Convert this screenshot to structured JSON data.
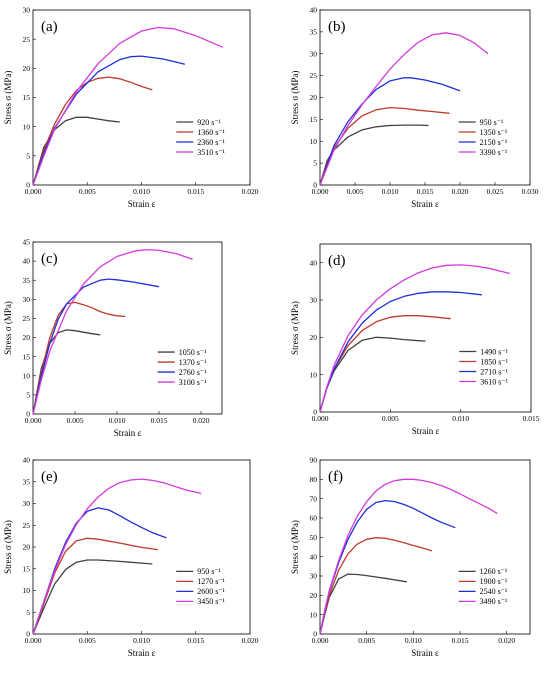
{
  "colors": {
    "series": [
      "#404040",
      "#c0392b",
      "#1f2fd6",
      "#d43adf"
    ],
    "axes": "#000000",
    "background": "#ffffff"
  },
  "chart_data": [
    {
      "type": "line",
      "panel_label": "(a)",
      "xlabel": "Strain ε",
      "ylabel": "Stress σ (MPa)",
      "xlim": [
        0,
        0.02
      ],
      "ylim": [
        0,
        30
      ],
      "xticks": [
        "0.000",
        "0.005",
        "0.010",
        "0.015",
        "0.020"
      ],
      "yticks": [
        "0",
        "5",
        "10",
        "15",
        "20",
        "25",
        "30"
      ],
      "series": [
        {
          "name": "920 s⁻¹",
          "x": [
            0,
            0.001,
            0.002,
            0.003,
            0.004,
            0.005,
            0.006,
            0.007,
            0.008
          ],
          "y": [
            0,
            6.5,
            9.5,
            11.0,
            11.6,
            11.6,
            11.3,
            11.0,
            10.8
          ]
        },
        {
          "name": "1360 s⁻¹",
          "x": [
            0,
            0.001,
            0.002,
            0.003,
            0.004,
            0.005,
            0.006,
            0.007,
            0.008,
            0.009,
            0.01,
            0.011
          ],
          "y": [
            0,
            6.0,
            10.5,
            13.8,
            16.2,
            17.6,
            18.3,
            18.5,
            18.2,
            17.6,
            16.9,
            16.3
          ]
        },
        {
          "name": "2360 s⁻¹",
          "x": [
            0,
            0.001,
            0.002,
            0.004,
            0.006,
            0.008,
            0.009,
            0.01,
            0.012,
            0.014
          ],
          "y": [
            0,
            5.5,
            9.8,
            15.6,
            19.4,
            21.5,
            22.0,
            22.1,
            21.6,
            20.7
          ]
        },
        {
          "name": "3510 s⁻¹",
          "x": [
            0,
            0.001,
            0.002,
            0.004,
            0.006,
            0.008,
            0.01,
            0.0115,
            0.013,
            0.015,
            0.0175
          ],
          "y": [
            0,
            5.0,
            9.6,
            16.0,
            20.8,
            24.3,
            26.4,
            27.0,
            26.8,
            25.6,
            23.6
          ]
        }
      ]
    },
    {
      "type": "line",
      "panel_label": "(b)",
      "xlabel": "Strain ε",
      "ylabel": "Stress σ (MPa)",
      "xlim": [
        0,
        0.03
      ],
      "ylim": [
        0,
        40
      ],
      "xticks": [
        "0.000",
        "0.005",
        "0.010",
        "0.015",
        "0.020",
        "0.025",
        "0.030"
      ],
      "yticks": [
        "0",
        "5",
        "10",
        "15",
        "20",
        "25",
        "30",
        "35",
        "40"
      ],
      "series": [
        {
          "name": "950 s⁻¹",
          "x": [
            0,
            0.001,
            0.002,
            0.004,
            0.006,
            0.008,
            0.01,
            0.012,
            0.014,
            0.0155
          ],
          "y": [
            0,
            5.5,
            8.0,
            11.0,
            12.6,
            13.3,
            13.6,
            13.7,
            13.7,
            13.6
          ]
        },
        {
          "name": "1350 s⁻¹",
          "x": [
            0,
            0.001,
            0.002,
            0.004,
            0.006,
            0.008,
            0.01,
            0.012,
            0.014,
            0.016,
            0.0185
          ],
          "y": [
            0,
            5.0,
            8.5,
            13.0,
            15.8,
            17.2,
            17.7,
            17.5,
            17.1,
            16.8,
            16.4
          ]
        },
        {
          "name": "2150 s⁻¹",
          "x": [
            0,
            0.002,
            0.004,
            0.006,
            0.008,
            0.01,
            0.012,
            0.013,
            0.015,
            0.0175,
            0.02
          ],
          "y": [
            0,
            9.0,
            14.5,
            18.5,
            21.8,
            23.8,
            24.5,
            24.5,
            24.0,
            23.0,
            21.5
          ]
        },
        {
          "name": "3390 s⁻¹",
          "x": [
            0,
            0.002,
            0.004,
            0.006,
            0.008,
            0.01,
            0.012,
            0.014,
            0.016,
            0.018,
            0.02,
            0.022,
            0.024
          ],
          "y": [
            0,
            8.0,
            13.6,
            18.3,
            22.5,
            26.5,
            29.8,
            32.6,
            34.3,
            34.8,
            34.2,
            32.5,
            30.0
          ]
        }
      ]
    },
    {
      "type": "line",
      "panel_label": "(c)",
      "xlabel": "Strain ε",
      "ylabel": "Stress σ (MPa)",
      "xlim": [
        0,
        0.0225
      ],
      "ylim": [
        0,
        45
      ],
      "xticks": [
        "0.000",
        "0.005",
        "0.010",
        "0.015",
        "0.020"
      ],
      "yticks": [
        "0",
        "5",
        "10",
        "15",
        "20",
        "25",
        "30",
        "35",
        "40",
        "45"
      ],
      "series": [
        {
          "name": "1050 s⁻¹",
          "x": [
            0,
            0.001,
            0.002,
            0.003,
            0.004,
            0.005,
            0.006,
            0.007,
            0.008
          ],
          "y": [
            0,
            12.0,
            18.5,
            21.3,
            22.0,
            21.8,
            21.4,
            21.0,
            20.7
          ]
        },
        {
          "name": "1370 s⁻¹",
          "x": [
            0,
            0.001,
            0.002,
            0.003,
            0.004,
            0.005,
            0.006,
            0.007,
            0.008,
            0.009,
            0.01,
            0.011
          ],
          "y": [
            0,
            11.0,
            20.0,
            25.8,
            28.8,
            29.2,
            28.6,
            27.8,
            26.8,
            26.1,
            25.7,
            25.5
          ]
        },
        {
          "name": "2760 s⁻¹",
          "x": [
            0,
            0.001,
            0.002,
            0.003,
            0.004,
            0.006,
            0.008,
            0.009,
            0.01,
            0.012,
            0.014,
            0.015
          ],
          "y": [
            0,
            10.0,
            18.5,
            24.8,
            28.8,
            33.2,
            35.0,
            35.3,
            35.1,
            34.5,
            33.7,
            33.3
          ]
        },
        {
          "name": "3100 s⁻¹",
          "x": [
            0,
            0.001,
            0.002,
            0.004,
            0.006,
            0.008,
            0.01,
            0.012,
            0.0135,
            0.015,
            0.017,
            0.019
          ],
          "y": [
            0,
            9.0,
            16.5,
            27.0,
            34.0,
            38.5,
            41.2,
            42.6,
            43.0,
            42.8,
            42.0,
            40.5
          ]
        }
      ]
    },
    {
      "type": "line",
      "panel_label": "(d)",
      "xlabel": "Strain ε",
      "ylabel": "Stress σ (MPa)",
      "xlim": [
        0,
        0.015
      ],
      "ylim": [
        0,
        45
      ],
      "xticks": [
        "0.000",
        "0.005",
        "0.010",
        "0.015"
      ],
      "yticks": [
        "0",
        "10",
        "20",
        "30",
        "40"
      ],
      "series": [
        {
          "name": "1490 s⁻¹",
          "x": [
            0,
            0.0005,
            0.001,
            0.002,
            0.003,
            0.004,
            0.005,
            0.006,
            0.007,
            0.0075
          ],
          "y": [
            0,
            6.5,
            11.0,
            16.5,
            19.2,
            20.0,
            19.8,
            19.4,
            19.1,
            19.0
          ]
        },
        {
          "name": "1850 s⁻¹",
          "x": [
            0,
            0.0005,
            0.001,
            0.002,
            0.003,
            0.004,
            0.005,
            0.006,
            0.007,
            0.008,
            0.009,
            0.0093
          ],
          "y": [
            0,
            6.8,
            11.5,
            17.8,
            21.8,
            24.2,
            25.4,
            25.8,
            25.8,
            25.5,
            25.1,
            25.0
          ]
        },
        {
          "name": "2710 s⁻¹",
          "x": [
            0,
            0.0005,
            0.001,
            0.002,
            0.003,
            0.004,
            0.005,
            0.006,
            0.007,
            0.008,
            0.009,
            0.01,
            0.0115
          ],
          "y": [
            0,
            6.5,
            11.5,
            18.8,
            23.8,
            27.3,
            29.6,
            31.0,
            31.8,
            32.2,
            32.2,
            32.0,
            31.4
          ]
        },
        {
          "name": "3610 s⁻¹",
          "x": [
            0,
            0.0005,
            0.001,
            0.002,
            0.003,
            0.004,
            0.005,
            0.006,
            0.007,
            0.008,
            0.009,
            0.01,
            0.011,
            0.012,
            0.0135
          ],
          "y": [
            0,
            6.8,
            12.5,
            20.5,
            26.0,
            30.0,
            33.0,
            35.4,
            37.3,
            38.6,
            39.3,
            39.4,
            39.1,
            38.5,
            37.1
          ]
        }
      ]
    },
    {
      "type": "line",
      "panel_label": "(e)",
      "xlabel": "Strain ε",
      "ylabel": "Stress σ (MPa)",
      "xlim": [
        0,
        0.02
      ],
      "ylim": [
        0,
        40
      ],
      "xticks": [
        "0.000",
        "0.005",
        "0.010",
        "0.015",
        "0.020"
      ],
      "yticks": [
        "0",
        "5",
        "10",
        "15",
        "20",
        "25",
        "30",
        "35",
        "40"
      ],
      "series": [
        {
          "name": "950 s⁻¹",
          "x": [
            0,
            0.001,
            0.002,
            0.003,
            0.004,
            0.005,
            0.006,
            0.008,
            0.01,
            0.011
          ],
          "y": [
            0,
            6.0,
            11.5,
            14.8,
            16.5,
            17.0,
            17.0,
            16.7,
            16.3,
            16.1
          ]
        },
        {
          "name": "1270 s⁻¹",
          "x": [
            0,
            0.001,
            0.002,
            0.003,
            0.004,
            0.005,
            0.006,
            0.008,
            0.01,
            0.0115
          ],
          "y": [
            0,
            7.0,
            14.0,
            19.0,
            21.4,
            22.0,
            21.8,
            20.9,
            19.9,
            19.4
          ]
        },
        {
          "name": "2600 s⁻¹",
          "x": [
            0,
            0.001,
            0.002,
            0.003,
            0.004,
            0.005,
            0.006,
            0.007,
            0.008,
            0.009,
            0.01,
            0.011,
            0.0123
          ],
          "y": [
            0,
            7.5,
            15.0,
            21.0,
            25.5,
            28.2,
            29.0,
            28.5,
            27.2,
            25.8,
            24.5,
            23.3,
            22.1
          ]
        },
        {
          "name": "3450 s⁻¹",
          "x": [
            0,
            0.001,
            0.002,
            0.003,
            0.004,
            0.005,
            0.006,
            0.007,
            0.008,
            0.009,
            0.01,
            0.011,
            0.012,
            0.013,
            0.014,
            0.0155
          ],
          "y": [
            0,
            7.5,
            14.5,
            20.5,
            25.2,
            28.8,
            31.5,
            33.5,
            34.8,
            35.4,
            35.6,
            35.3,
            34.8,
            34.0,
            33.2,
            32.3
          ]
        }
      ]
    },
    {
      "type": "line",
      "panel_label": "(f)",
      "xlabel": "Strain ε",
      "ylabel": "Stress σ (MPa)",
      "xlim": [
        0,
        0.0225
      ],
      "ylim": [
        0,
        90
      ],
      "xticks": [
        "0.000",
        "0.005",
        "0.010",
        "0.015",
        "0.020"
      ],
      "yticks": [
        "0",
        "10",
        "20",
        "30",
        "40",
        "50",
        "60",
        "70",
        "80",
        "90"
      ],
      "series": [
        {
          "name": "1260 s⁻¹",
          "x": [
            0,
            0.0005,
            0.001,
            0.002,
            0.003,
            0.004,
            0.005,
            0.006,
            0.007,
            0.008,
            0.0093
          ],
          "y": [
            0,
            10.0,
            19.0,
            28.5,
            31.0,
            30.8,
            30.2,
            29.5,
            28.8,
            28.0,
            27.0
          ]
        },
        {
          "name": "1900 s⁻¹",
          "x": [
            0,
            0.0005,
            0.001,
            0.002,
            0.003,
            0.004,
            0.005,
            0.006,
            0.007,
            0.008,
            0.009,
            0.01,
            0.011,
            0.012
          ],
          "y": [
            0,
            11.0,
            20.0,
            33.0,
            41.5,
            46.5,
            49.0,
            49.8,
            49.5,
            48.5,
            47.2,
            45.8,
            44.5,
            43.0
          ]
        },
        {
          "name": "2540 s⁻¹",
          "x": [
            0,
            0.0005,
            0.001,
            0.002,
            0.003,
            0.004,
            0.005,
            0.006,
            0.007,
            0.008,
            0.009,
            0.01,
            0.011,
            0.012,
            0.013,
            0.0145
          ],
          "y": [
            0,
            12.0,
            22.0,
            37.0,
            49.0,
            58.0,
            64.5,
            68.0,
            69.0,
            68.5,
            67.0,
            65.0,
            62.5,
            60.0,
            57.8,
            55.0
          ]
        },
        {
          "name": "3490 s⁻¹",
          "x": [
            0,
            0.0005,
            0.001,
            0.002,
            0.003,
            0.004,
            0.005,
            0.006,
            0.007,
            0.008,
            0.009,
            0.01,
            0.011,
            0.012,
            0.013,
            0.014,
            0.015,
            0.016,
            0.017,
            0.018,
            0.019
          ],
          "y": [
            0,
            12.0,
            22.5,
            38.0,
            51.0,
            61.0,
            68.5,
            74.0,
            77.5,
            79.3,
            80.0,
            80.0,
            79.4,
            78.3,
            76.8,
            74.8,
            72.5,
            70.0,
            67.6,
            65.2,
            62.3
          ]
        }
      ]
    }
  ]
}
